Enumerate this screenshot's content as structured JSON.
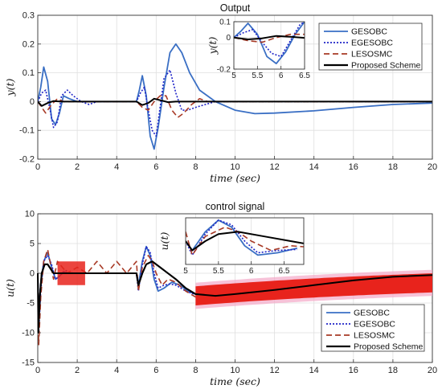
{
  "legend": [
    {
      "name": "GESOBC",
      "color": "#3a6fc4",
      "dash": ""
    },
    {
      "name": "EGESOBC",
      "color": "#1f24c8",
      "dash": "2,2"
    },
    {
      "name": "LESOSMC",
      "color": "#a83a26",
      "dash": "7,4"
    },
    {
      "name": "Proposed Scheme",
      "color": "#000000",
      "dash": ""
    }
  ],
  "chart_data": [
    {
      "type": "line",
      "title": "Output",
      "xlabel": "time (sec)",
      "ylabel": "y(t)",
      "xlim": [
        0,
        20
      ],
      "ylim": [
        -0.2,
        0.3
      ],
      "xticks": [
        0,
        2,
        4,
        6,
        8,
        10,
        12,
        14,
        16,
        18,
        20
      ],
      "yticks": [
        -0.2,
        -0.1,
        0,
        0.1,
        0.2,
        0.3
      ],
      "grid": true,
      "legend_position": "top-right",
      "series": [
        {
          "name": "GESOBC",
          "x": [
            0,
            0.15,
            0.3,
            0.5,
            0.7,
            0.9,
            1.1,
            1.3,
            1.6,
            2.0,
            2.5,
            3,
            4,
            5.0,
            5.15,
            5.3,
            5.5,
            5.7,
            5.9,
            6.1,
            6.4,
            6.7,
            7.0,
            7.3,
            7.7,
            8.2,
            9,
            10,
            11,
            12,
            14,
            16,
            18,
            20
          ],
          "y": [
            0,
            0.05,
            0.12,
            0.07,
            -0.06,
            -0.08,
            -0.04,
            0.02,
            0.01,
            0.0,
            0.0,
            0,
            0,
            0.0,
            0.04,
            0.09,
            0.02,
            -0.12,
            -0.165,
            -0.09,
            0.05,
            0.17,
            0.2,
            0.17,
            0.1,
            0.04,
            0.0,
            -0.03,
            -0.042,
            -0.04,
            -0.032,
            -0.02,
            -0.01,
            -0.005
          ]
        },
        {
          "name": "EGESOBC",
          "x": [
            0,
            0.2,
            0.4,
            0.6,
            0.8,
            1.0,
            1.2,
            1.5,
            1.8,
            2.2,
            2.6,
            3,
            4,
            5.0,
            5.2,
            5.4,
            5.6,
            5.8,
            6.0,
            6.2,
            6.4,
            6.7,
            7.0,
            7.3,
            7.6,
            8.0,
            8.5,
            9,
            10,
            12,
            20
          ],
          "y": [
            0,
            0.03,
            0.04,
            -0.02,
            -0.09,
            -0.07,
            0.02,
            0.04,
            0.02,
            0.0,
            -0.01,
            0,
            0,
            0.0,
            0.03,
            0.05,
            -0.03,
            -0.1,
            -0.12,
            -0.02,
            0.08,
            0.11,
            0.03,
            -0.03,
            -0.03,
            -0.02,
            -0.01,
            0.0,
            0.0,
            0,
            0
          ]
        },
        {
          "name": "LESOSMC",
          "x": [
            0,
            0.2,
            0.4,
            0.7,
            1.0,
            1.3,
            1.6,
            2,
            3,
            4,
            5.0,
            5.3,
            5.6,
            5.9,
            6.2,
            6.5,
            6.8,
            7.1,
            7.4,
            7.8,
            8.2,
            8.6,
            9,
            10,
            20
          ],
          "y": [
            0,
            -0.02,
            -0.04,
            -0.01,
            0.01,
            0.0,
            0.0,
            0,
            0,
            0,
            0.0,
            -0.02,
            -0.03,
            0.0,
            0.02,
            0.02,
            -0.03,
            -0.055,
            -0.04,
            -0.01,
            0.01,
            0.0,
            0.0,
            0,
            0
          ]
        },
        {
          "name": "Proposed Scheme",
          "x": [
            0,
            0.2,
            0.5,
            0.8,
            1.2,
            1.6,
            2,
            3,
            4,
            5.0,
            5.3,
            5.6,
            5.9,
            6.2,
            6.6,
            7.0,
            7.5,
            8,
            10,
            20
          ],
          "y": [
            0,
            -0.015,
            -0.005,
            0.002,
            0.0,
            0.0,
            0,
            0,
            0,
            0.0,
            -0.012,
            -0.005,
            0.01,
            0.005,
            -0.002,
            0.0,
            0.0,
            0,
            0,
            0
          ]
        }
      ]
    },
    {
      "type": "line",
      "title": "",
      "xlabel": "",
      "ylabel": "y(t)",
      "xlim": [
        5,
        6.5
      ],
      "ylim": [
        -0.2,
        0.1
      ],
      "xticks": [
        5,
        5.5,
        6,
        6.5
      ],
      "yticks": [
        -0.2,
        0,
        0.1
      ],
      "grid": true,
      "series": [
        {
          "name": "GESOBC",
          "x": [
            5.0,
            5.15,
            5.3,
            5.5,
            5.7,
            5.9,
            6.1,
            6.3,
            6.5
          ],
          "y": [
            0.0,
            0.04,
            0.09,
            0.02,
            -0.12,
            -0.165,
            -0.09,
            0.02,
            0.1
          ]
        },
        {
          "name": "EGESOBC",
          "x": [
            5.0,
            5.2,
            5.4,
            5.6,
            5.8,
            6.0,
            6.2,
            6.4,
            6.5
          ],
          "y": [
            0.0,
            0.03,
            0.05,
            -0.03,
            -0.1,
            -0.12,
            -0.02,
            0.08,
            0.1
          ]
        },
        {
          "name": "LESOSMC",
          "x": [
            5.0,
            5.3,
            5.6,
            5.9,
            6.2,
            6.5
          ],
          "y": [
            0.0,
            -0.02,
            -0.03,
            0.0,
            0.02,
            0.02
          ]
        },
        {
          "name": "Proposed Scheme",
          "x": [
            5.0,
            5.3,
            5.6,
            5.9,
            6.2,
            6.5
          ],
          "y": [
            0.0,
            -0.012,
            -0.005,
            0.01,
            0.005,
            -0.002
          ]
        }
      ]
    },
    {
      "type": "line",
      "title": "control signal",
      "xlabel": "time (sec)",
      "ylabel": "u(t)",
      "xlim": [
        0,
        20
      ],
      "ylim": [
        -15,
        10
      ],
      "xticks": [
        0,
        2,
        4,
        6,
        8,
        10,
        12,
        14,
        16,
        18,
        20
      ],
      "yticks": [
        -15,
        -10,
        -5,
        0,
        5,
        10
      ],
      "grid": true,
      "legend_position": "bottom-right",
      "series": [
        {
          "name": "GESOBC",
          "x": [
            0,
            0.05,
            0.15,
            0.3,
            0.5,
            0.7,
            0.9,
            1.1,
            1.3,
            1.6,
            2,
            3,
            4,
            5.0,
            5.1,
            5.3,
            5.5,
            5.7,
            5.9,
            6.1,
            6.4,
            6.8,
            7.2,
            7.6,
            8.0,
            8.5,
            9,
            10,
            12,
            14,
            16,
            18,
            20
          ],
          "y": [
            0,
            -8,
            -2,
            2,
            3.5,
            1,
            -1,
            -0.5,
            0.3,
            0,
            0,
            0,
            0,
            0,
            -2,
            2,
            4.5,
            3,
            -1,
            -3,
            -2.5,
            -1.5,
            -2,
            -3,
            -3.5,
            -3.8,
            -3.8,
            -3.5,
            -2.8,
            -2,
            -1.2,
            -0.6,
            -0.3
          ]
        },
        {
          "name": "EGESOBC",
          "x": [
            0,
            0.05,
            0.15,
            0.3,
            0.5,
            0.7,
            0.9,
            1.1,
            1.4,
            1.8,
            2.2,
            3,
            4,
            5.0,
            5.1,
            5.3,
            5.5,
            5.7,
            5.9,
            6.1,
            6.4,
            6.7,
            7.0,
            7.5,
            8,
            9,
            10,
            12,
            14,
            16,
            18,
            20
          ],
          "y": [
            0,
            -10,
            -3,
            2,
            3,
            1.5,
            -1,
            -0.5,
            0.5,
            0,
            0,
            0,
            0,
            0,
            -3,
            1.5,
            4.5,
            3.5,
            0,
            -2.5,
            -2,
            -1.8,
            -2,
            -3,
            -3.6,
            -3.8,
            -3.6,
            -2.8,
            -2,
            -1.2,
            -0.6,
            -0.3
          ]
        },
        {
          "name": "LESOSMC",
          "x": [
            0,
            0.05,
            0.15,
            0.3,
            0.5,
            0.8,
            1.0,
            1.5,
            2,
            2.5,
            3,
            3.5,
            4,
            4.5,
            5.0,
            5.1,
            5.3,
            5.6,
            5.8,
            6.0,
            6.3,
            6.6,
            7.0,
            7.5,
            8,
            9,
            10,
            12,
            14,
            16,
            18,
            20
          ],
          "y": [
            0,
            -12,
            -4,
            2,
            4,
            -1,
            2,
            0,
            1,
            0,
            2,
            0,
            2,
            0,
            2,
            -3,
            1,
            3,
            2,
            0,
            -2,
            -1,
            -1.5,
            -3,
            -4,
            -3.8,
            -3.5,
            -2.8,
            -2,
            -1.2,
            -0.6,
            -0.3
          ]
        },
        {
          "name": "Proposed Scheme",
          "x": [
            0,
            0.03,
            0.1,
            0.2,
            0.35,
            0.5,
            0.8,
            1.2,
            2,
            3,
            4,
            5.0,
            5.1,
            5.3,
            5.5,
            5.8,
            6.2,
            6.6,
            7.0,
            7.5,
            8,
            9,
            10,
            12,
            14,
            16,
            18,
            20
          ],
          "y": [
            0,
            -10,
            -4,
            0,
            1.5,
            1.5,
            0,
            0,
            0,
            0,
            0,
            0,
            -2,
            0,
            1.5,
            2,
            1,
            0,
            -1,
            -2.5,
            -3.5,
            -3.8,
            -3.5,
            -2.8,
            -2,
            -1.2,
            -0.6,
            -0.3
          ]
        }
      ]
    },
    {
      "type": "line",
      "title": "",
      "xlabel": "",
      "ylabel": "u(t)",
      "xlim": [
        5,
        6.8
      ],
      "ylim": [
        -5,
        5
      ],
      "xticks": [
        5,
        5.5,
        6,
        6.5
      ],
      "yticks": [],
      "grid": true,
      "series": [
        {
          "name": "GESOBC",
          "x": [
            5.0,
            5.1,
            5.3,
            5.5,
            5.7,
            5.9,
            6.1,
            6.4,
            6.7
          ],
          "y": [
            0,
            -2,
            2,
            4.5,
            3,
            -1,
            -3,
            -2.5,
            -1.5
          ]
        },
        {
          "name": "EGESOBC",
          "x": [
            5.0,
            5.1,
            5.3,
            5.5,
            5.7,
            5.9,
            6.1,
            6.4,
            6.7
          ],
          "y": [
            0,
            -3,
            1.5,
            4.5,
            3.5,
            0,
            -2.5,
            -2,
            -1.8
          ]
        },
        {
          "name": "LESOSMC",
          "x": [
            5.0,
            5.1,
            5.3,
            5.6,
            5.8,
            6.0,
            6.3,
            6.6,
            6.8
          ],
          "y": [
            2,
            -3,
            1,
            3,
            2,
            0,
            -2,
            -1,
            -1.2
          ]
        },
        {
          "name": "Proposed Scheme",
          "x": [
            5.0,
            5.1,
            5.3,
            5.5,
            5.8,
            6.2,
            6.6,
            6.8
          ],
          "y": [
            0,
            -2,
            0,
            1.5,
            2,
            1,
            0,
            -0.5
          ]
        }
      ]
    }
  ]
}
